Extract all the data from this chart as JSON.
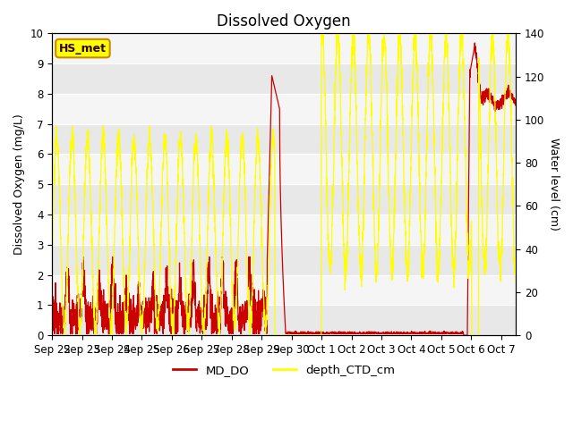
{
  "title": "Dissolved Oxygen",
  "ylabel_left": "Dissolved Oxygen (mg/L)",
  "ylabel_right": "Water level (cm)",
  "ylim_left": [
    0.0,
    10.0
  ],
  "ylim_right": [
    0,
    140
  ],
  "yticks_left": [
    0.0,
    1.0,
    2.0,
    3.0,
    4.0,
    5.0,
    6.0,
    7.0,
    8.0,
    9.0,
    10.0
  ],
  "yticks_right": [
    0,
    20,
    40,
    60,
    80,
    100,
    120,
    140
  ],
  "band_colors": [
    "#e8e8e8",
    "#f5f5f5"
  ],
  "md_do_color": "#cc0000",
  "depth_ctd_color": "#ffff00",
  "annotation_text": "HS_met",
  "annotation_bg": "#ffff00",
  "annotation_border": "#cc8800",
  "title_fontsize": 12,
  "label_fontsize": 9,
  "tick_fontsize": 8.5,
  "figsize": [
    6.4,
    4.8
  ],
  "dpi": 100
}
